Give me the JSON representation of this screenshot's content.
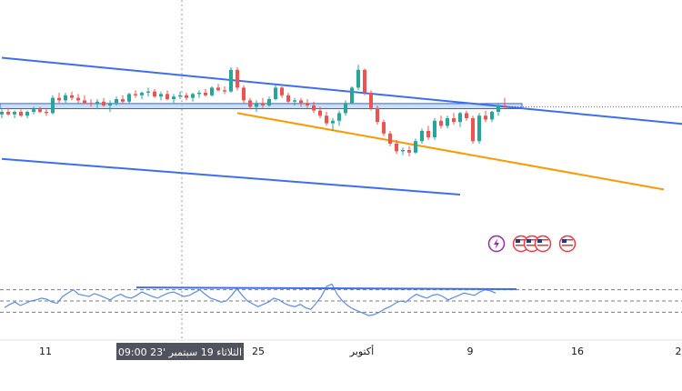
{
  "chart_data": {
    "type": "candlestick",
    "colors": {
      "up": "#26a69a",
      "down": "#ef5350",
      "trendline": "#3d6ef2",
      "support_line": "#ff9800",
      "zone_fill": "#bbd6f7",
      "zone_border": "#2962ff",
      "osc_line": "#5b8cef",
      "osc_levels": "#787b86",
      "price_marker": "#f23645",
      "crosshair_label_bg": "#50535e"
    },
    "x_axis": {
      "ticks": [
        "11",
        "25",
        "أكتوبر",
        "9",
        "16",
        "2"
      ],
      "crosshair_label": "الثلاثاء 19 سبتمبر '23   09:00"
    },
    "price_panel": {
      "y_range": [
        0,
        100
      ],
      "resistance_zone": [
        57.5,
        61.5
      ],
      "price_marker_level": 59.0,
      "channel_upper": [
        [
          0,
          97.5
        ],
        [
          110,
          44
        ]
      ],
      "channel_lower": [
        [
          0,
          18
        ],
        [
          72,
          -10
        ]
      ],
      "support_line": [
        [
          37,
          54
        ],
        [
          104,
          -6
        ]
      ],
      "candles": [
        {
          "o": 53,
          "h": 57,
          "l": 50,
          "c": 55
        },
        {
          "o": 55,
          "h": 58,
          "l": 52,
          "c": 53
        },
        {
          "o": 53,
          "h": 56,
          "l": 50,
          "c": 55
        },
        {
          "o": 55,
          "h": 57,
          "l": 51,
          "c": 52
        },
        {
          "o": 52,
          "h": 56,
          "l": 50,
          "c": 55
        },
        {
          "o": 55,
          "h": 59,
          "l": 53,
          "c": 57
        },
        {
          "o": 57,
          "h": 59,
          "l": 54,
          "c": 55
        },
        {
          "o": 55,
          "h": 58,
          "l": 52,
          "c": 54
        },
        {
          "o": 54,
          "h": 68,
          "l": 53,
          "c": 66
        },
        {
          "o": 66,
          "h": 70,
          "l": 62,
          "c": 64
        },
        {
          "o": 64,
          "h": 70,
          "l": 62,
          "c": 68
        },
        {
          "o": 68,
          "h": 71,
          "l": 64,
          "c": 66
        },
        {
          "o": 66,
          "h": 69,
          "l": 62,
          "c": 64
        },
        {
          "o": 64,
          "h": 68,
          "l": 61,
          "c": 62
        },
        {
          "o": 62,
          "h": 65,
          "l": 59,
          "c": 61
        },
        {
          "o": 61,
          "h": 65,
          "l": 57,
          "c": 63
        },
        {
          "o": 63,
          "h": 66,
          "l": 59,
          "c": 60
        },
        {
          "o": 60,
          "h": 64,
          "l": 55,
          "c": 62
        },
        {
          "o": 62,
          "h": 67,
          "l": 60,
          "c": 65
        },
        {
          "o": 65,
          "h": 68,
          "l": 61,
          "c": 63
        },
        {
          "o": 63,
          "h": 70,
          "l": 62,
          "c": 69
        },
        {
          "o": 69,
          "h": 72,
          "l": 66,
          "c": 68
        },
        {
          "o": 68,
          "h": 71,
          "l": 65,
          "c": 70
        },
        {
          "o": 70,
          "h": 74,
          "l": 67,
          "c": 71
        },
        {
          "o": 71,
          "h": 73,
          "l": 66,
          "c": 67
        },
        {
          "o": 67,
          "h": 71,
          "l": 64,
          "c": 69
        },
        {
          "o": 69,
          "h": 72,
          "l": 64,
          "c": 65
        },
        {
          "o": 65,
          "h": 69,
          "l": 62,
          "c": 67
        },
        {
          "o": 67,
          "h": 71,
          "l": 65,
          "c": 68
        },
        {
          "o": 68,
          "h": 70,
          "l": 64,
          "c": 66
        },
        {
          "o": 66,
          "h": 70,
          "l": 63,
          "c": 69
        },
        {
          "o": 69,
          "h": 72,
          "l": 66,
          "c": 70
        },
        {
          "o": 70,
          "h": 73,
          "l": 67,
          "c": 68
        },
        {
          "o": 68,
          "h": 75,
          "l": 67,
          "c": 74
        },
        {
          "o": 74,
          "h": 77,
          "l": 71,
          "c": 72
        },
        {
          "o": 72,
          "h": 75,
          "l": 69,
          "c": 71
        },
        {
          "o": 71,
          "h": 90,
          "l": 70,
          "c": 88
        },
        {
          "o": 88,
          "h": 90,
          "l": 72,
          "c": 74
        },
        {
          "o": 74,
          "h": 76,
          "l": 62,
          "c": 64
        },
        {
          "o": 64,
          "h": 66,
          "l": 57,
          "c": 59
        },
        {
          "o": 59,
          "h": 64,
          "l": 55,
          "c": 62
        },
        {
          "o": 62,
          "h": 66,
          "l": 58,
          "c": 60
        },
        {
          "o": 60,
          "h": 67,
          "l": 59,
          "c": 65
        },
        {
          "o": 65,
          "h": 76,
          "l": 64,
          "c": 74
        },
        {
          "o": 74,
          "h": 75,
          "l": 66,
          "c": 68
        },
        {
          "o": 68,
          "h": 70,
          "l": 62,
          "c": 63
        },
        {
          "o": 63,
          "h": 66,
          "l": 60,
          "c": 64
        },
        {
          "o": 64,
          "h": 66,
          "l": 59,
          "c": 62
        },
        {
          "o": 62,
          "h": 65,
          "l": 58,
          "c": 60
        },
        {
          "o": 60,
          "h": 63,
          "l": 54,
          "c": 56
        },
        {
          "o": 56,
          "h": 59,
          "l": 50,
          "c": 52
        },
        {
          "o": 52,
          "h": 55,
          "l": 44,
          "c": 46
        },
        {
          "o": 46,
          "h": 50,
          "l": 40,
          "c": 48
        },
        {
          "o": 48,
          "h": 56,
          "l": 44,
          "c": 54
        },
        {
          "o": 54,
          "h": 64,
          "l": 52,
          "c": 62
        },
        {
          "o": 62,
          "h": 75,
          "l": 61,
          "c": 74
        },
        {
          "o": 74,
          "h": 92,
          "l": 72,
          "c": 88
        },
        {
          "o": 88,
          "h": 89,
          "l": 68,
          "c": 70
        },
        {
          "o": 70,
          "h": 72,
          "l": 56,
          "c": 58
        },
        {
          "o": 58,
          "h": 60,
          "l": 45,
          "c": 47
        },
        {
          "o": 47,
          "h": 49,
          "l": 36,
          "c": 38
        },
        {
          "o": 38,
          "h": 40,
          "l": 28,
          "c": 30
        },
        {
          "o": 30,
          "h": 33,
          "l": 22,
          "c": 24
        },
        {
          "o": 24,
          "h": 27,
          "l": 21,
          "c": 25
        },
        {
          "o": 25,
          "h": 28,
          "l": 20,
          "c": 23
        },
        {
          "o": 23,
          "h": 34,
          "l": 22,
          "c": 32
        },
        {
          "o": 32,
          "h": 42,
          "l": 30,
          "c": 40
        },
        {
          "o": 40,
          "h": 44,
          "l": 33,
          "c": 35
        },
        {
          "o": 35,
          "h": 50,
          "l": 33,
          "c": 48
        },
        {
          "o": 48,
          "h": 52,
          "l": 42,
          "c": 44
        },
        {
          "o": 44,
          "h": 52,
          "l": 42,
          "c": 50
        },
        {
          "o": 50,
          "h": 54,
          "l": 45,
          "c": 47
        },
        {
          "o": 47,
          "h": 55,
          "l": 43,
          "c": 54
        },
        {
          "o": 54,
          "h": 56,
          "l": 48,
          "c": 50
        },
        {
          "o": 50,
          "h": 52,
          "l": 30,
          "c": 32
        },
        {
          "o": 32,
          "h": 54,
          "l": 30,
          "c": 52
        },
        {
          "o": 52,
          "h": 56,
          "l": 47,
          "c": 49
        },
        {
          "o": 49,
          "h": 56,
          "l": 47,
          "c": 55
        },
        {
          "o": 55,
          "h": 62,
          "l": 52,
          "c": 60
        },
        {
          "o": 60,
          "h": 66,
          "l": 58,
          "c": 59
        }
      ]
    },
    "oscillator": {
      "y_range": [
        0,
        100
      ],
      "levels": [
        70,
        50,
        30
      ],
      "resistance_line": [
        [
          5,
          74
        ],
        [
          50,
          71
        ]
      ],
      "values": [
        38,
        44,
        48,
        42,
        46,
        50,
        52,
        55,
        53,
        48,
        46,
        58,
        64,
        70,
        62,
        60,
        58,
        63,
        60,
        56,
        52,
        58,
        62,
        57,
        55,
        60,
        66,
        62,
        58,
        55,
        60,
        64,
        66,
        62,
        58,
        60,
        65,
        70,
        62,
        55,
        52,
        48,
        50,
        60,
        72,
        60,
        50,
        45,
        40,
        44,
        48,
        55,
        52,
        46,
        42,
        40,
        44,
        38,
        35,
        46,
        58,
        76,
        80,
        62,
        50,
        42,
        36,
        32,
        28,
        24,
        26,
        30,
        36,
        40,
        46,
        50,
        48,
        56,
        62,
        58,
        55,
        60,
        62,
        58,
        52,
        56,
        60,
        64,
        62,
        60,
        66,
        70,
        68,
        64
      ]
    },
    "event_icons": [
      "lightning-icon",
      "us-flag-icon",
      "us-flag-icon",
      "us-flag-icon",
      "us-flag-icon"
    ]
  }
}
